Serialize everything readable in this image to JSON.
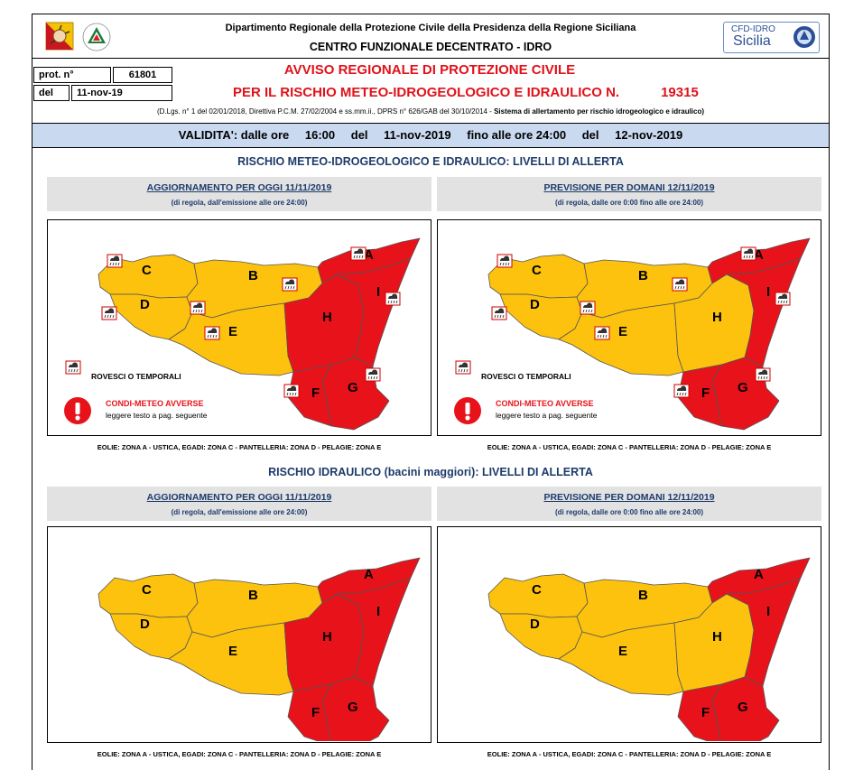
{
  "header": {
    "department": "Dipartimento Regionale della Protezione Civile della Presidenza della Regione Siciliana",
    "centro": "CENTRO FUNZIONALE DECENTRATO - IDRO",
    "cfd_line1": "CFD-IDRO",
    "cfd_line2": "Sicilia"
  },
  "protocol": {
    "prot_label": "prot. n°",
    "prot_value": "61801",
    "del_label": "del",
    "del_value": "11-nov-19"
  },
  "notice": {
    "title_line1": "AVVISO REGIONALE DI PROTEZIONE CIVILE",
    "title_line2": "PER IL RISCHIO METEO-IDROGEOLOGICO E IDRAULICO N.",
    "number": "19315",
    "legal": "(D.Lgs. n° 1 del 02/01/2018, Direttiva P.C.M. 27/02/2004 e ss.mm.ii., DPRS n° 626/GAB del 30/10/2014 - ",
    "legal_bold": "Sistema di allertamento per rischio idrogeologico e idraulico)"
  },
  "validity": {
    "label": "VALIDITA': dalle ore",
    "from_time": "16:00",
    "del1": "del",
    "from_date": "11-nov-2019",
    "until": "fino alle ore 24:00",
    "del2": "del",
    "to_date": "12-nov-2019"
  },
  "section1_title": "RISCHIO METEO-IDROGEOLOGICO E IDRAULICO: LIVELLI DI ALLERTA",
  "section2_title": "RISCHIO IDRAULICO (bacini maggiori): LIVELLI DI ALLERTA",
  "panels": {
    "today_title": "AGGIORNAMENTO PER OGGI 11/11/2019",
    "today_sub": "(di regola, dall'emissione alle ore 24:00)",
    "tomorrow_title": "PREVISIONE PER DOMANI 12/11/2019",
    "tomorrow_sub": "(di regola, dalle ore 0:00 fino alle ore 24:00)"
  },
  "legend": {
    "storms": "ROVESCI O TEMPORALI",
    "adverse": "CONDI-METEO AVVERSE",
    "see_text": "leggere testo a pag. seguente"
  },
  "islands_note": "EOLIE: ZONA A - USTICA, EGADI: ZONA C - PANTELLERIA: ZONA D - PELAGIE: ZONA E",
  "zone_labels": [
    "A",
    "B",
    "C",
    "D",
    "E",
    "F",
    "G",
    "H",
    "I"
  ],
  "colors": {
    "red": "#e8131a",
    "yellow": "#fdc20d",
    "header_blue": "#c9d9ef",
    "grey_box": "#e2e2e2",
    "title_blue": "#1d3b6b"
  },
  "alerts": {
    "meteo_today": {
      "A": "red",
      "B": "yellow",
      "C": "yellow",
      "D": "yellow",
      "E": "yellow",
      "F": "red",
      "G": "red",
      "H": "red",
      "I": "red"
    },
    "meteo_tomorrow": {
      "A": "red",
      "B": "yellow",
      "C": "yellow",
      "D": "yellow",
      "E": "yellow",
      "F": "red",
      "G": "red",
      "H": "yellow",
      "I": "red"
    },
    "hydro_today": {
      "A": "red",
      "B": "yellow",
      "C": "yellow",
      "D": "yellow",
      "E": "yellow",
      "F": "red",
      "G": "red",
      "H": "red",
      "I": "red"
    },
    "hydro_tomorrow": {
      "A": "red",
      "B": "yellow",
      "C": "yellow",
      "D": "yellow",
      "E": "yellow",
      "F": "red",
      "G": "red",
      "H": "yellow",
      "I": "red"
    }
  },
  "icons": [
    "sicily-coat-of-arms-icon",
    "protezione-civile-logo-icon",
    "cfd-emblem-icon",
    "rain-storm-icon",
    "warning-exclamation-icon"
  ]
}
